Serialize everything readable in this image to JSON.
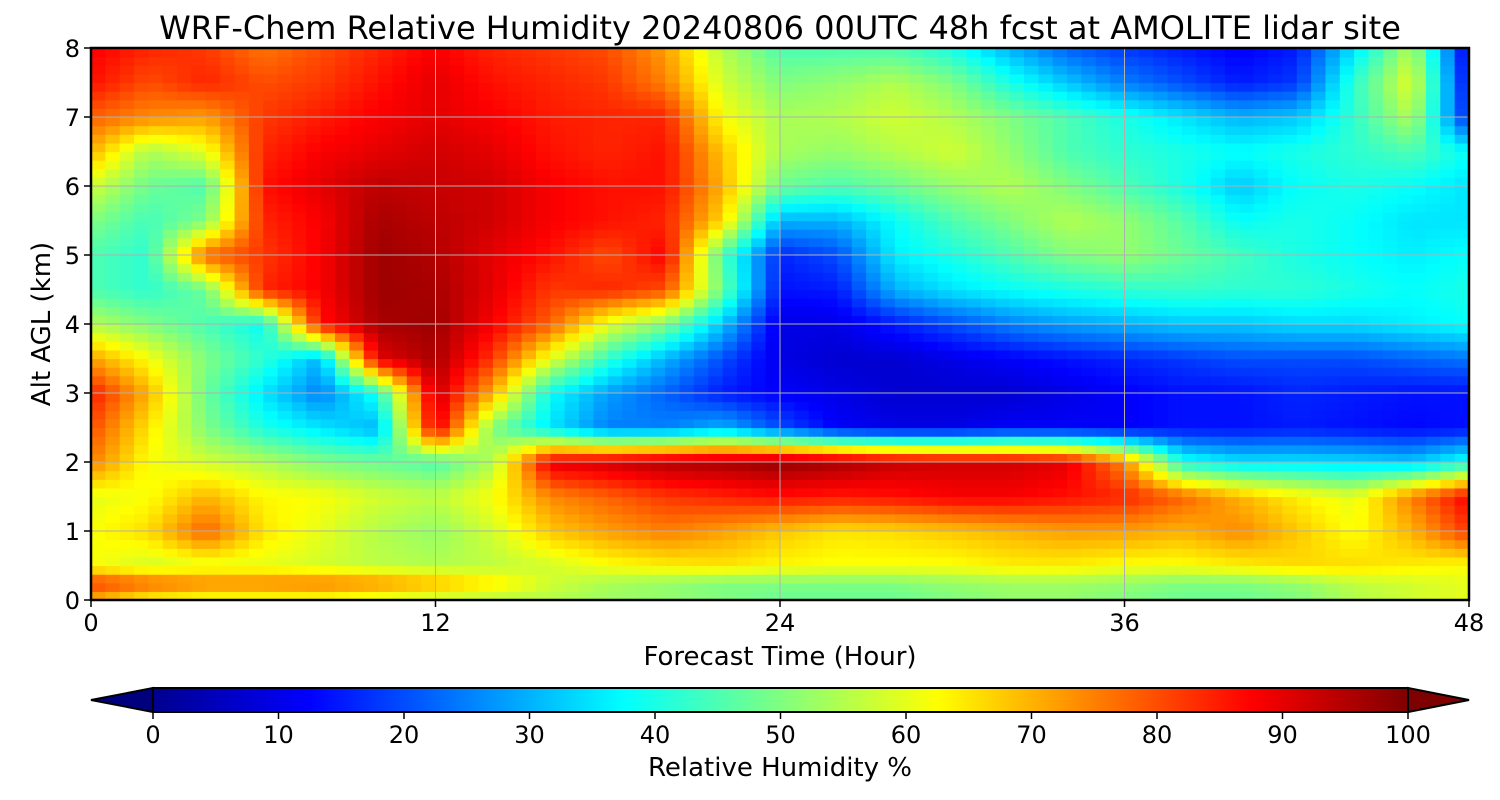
{
  "chart_data": {
    "type": "heatmap",
    "title": "WRF-Chem Relative Humidity 20240806 00UTC 48h fcst at AMOLITE lidar site",
    "xlabel": "Forecast Time (Hour)",
    "ylabel": "Alt AGL (km)",
    "xlim": [
      0,
      48
    ],
    "ylim": [
      0,
      8
    ],
    "x_ticks": [
      "0",
      "12",
      "24",
      "36",
      "48"
    ],
    "y_ticks": [
      "0",
      "1",
      "2",
      "3",
      "4",
      "5",
      "6",
      "7",
      "8"
    ],
    "grid": true,
    "colorbar": {
      "label": "Relative Humidity %",
      "ticks": [
        "0",
        "10",
        "20",
        "30",
        "40",
        "50",
        "60",
        "70",
        "80",
        "90",
        "100"
      ],
      "range": [
        0,
        100
      ],
      "colormap": "jet",
      "extend": "both"
    },
    "x": [
      0,
      2,
      4,
      6,
      8,
      10,
      12,
      14,
      16,
      18,
      20,
      22,
      24,
      26,
      28,
      30,
      32,
      34,
      36,
      38,
      40,
      42,
      44,
      46,
      48
    ],
    "y": [
      0,
      0.25,
      0.5,
      1,
      1.5,
      2,
      2.5,
      3,
      3.5,
      4,
      4.5,
      5,
      5.5,
      6,
      6.5,
      7,
      7.5,
      8
    ],
    "z": [
      [
        70,
        62,
        60,
        60,
        60,
        58,
        56,
        55,
        55,
        53,
        52,
        50,
        48,
        48,
        48,
        50,
        52,
        52,
        50,
        48,
        48,
        50,
        55,
        58,
        60
      ],
      [
        82,
        78,
        75,
        75,
        76,
        74,
        70,
        65,
        58,
        54,
        52,
        50,
        50,
        50,
        50,
        52,
        53,
        53,
        52,
        50,
        50,
        52,
        56,
        58,
        60
      ],
      [
        62,
        58,
        60,
        60,
        58,
        56,
        55,
        56,
        58,
        62,
        64,
        65,
        63,
        62,
        62,
        62,
        64,
        64,
        62,
        62,
        64,
        66,
        66,
        64,
        62
      ],
      [
        62,
        66,
        78,
        65,
        60,
        55,
        52,
        58,
        68,
        72,
        75,
        72,
        68,
        65,
        66,
        68,
        70,
        72,
        72,
        70,
        74,
        68,
        62,
        70,
        82
      ],
      [
        60,
        62,
        70,
        63,
        62,
        58,
        56,
        62,
        74,
        78,
        82,
        84,
        86,
        85,
        86,
        88,
        88,
        86,
        84,
        78,
        70,
        64,
        60,
        75,
        88
      ],
      [
        75,
        62,
        58,
        55,
        50,
        48,
        45,
        55,
        90,
        92,
        95,
        96,
        98,
        96,
        93,
        92,
        92,
        90,
        74,
        40,
        35,
        35,
        34,
        32,
        40
      ],
      [
        80,
        65,
        50,
        40,
        35,
        30,
        90,
        50,
        35,
        25,
        25,
        30,
        20,
        12,
        10,
        10,
        12,
        12,
        12,
        14,
        14,
        15,
        14,
        13,
        14
      ],
      [
        85,
        70,
        48,
        35,
        25,
        40,
        93,
        70,
        38,
        28,
        22,
        15,
        12,
        10,
        8,
        8,
        8,
        10,
        12,
        14,
        14,
        16,
        15,
        14,
        14
      ],
      [
        72,
        62,
        50,
        42,
        30,
        90,
        96,
        82,
        60,
        42,
        30,
        20,
        10,
        8,
        8,
        10,
        12,
        14,
        16,
        18,
        20,
        20,
        20,
        22,
        24
      ],
      [
        55,
        50,
        45,
        38,
        86,
        96,
        97,
        88,
        78,
        60,
        50,
        32,
        10,
        10,
        15,
        20,
        25,
        28,
        30,
        32,
        32,
        34,
        34,
        36,
        38
      ],
      [
        45,
        42,
        48,
        84,
        88,
        97,
        96,
        90,
        82,
        84,
        80,
        48,
        14,
        15,
        30,
        35,
        38,
        40,
        42,
        43,
        42,
        42,
        40,
        38,
        40
      ],
      [
        45,
        42,
        78,
        82,
        88,
        97,
        95,
        90,
        86,
        80,
        88,
        45,
        16,
        20,
        36,
        40,
        45,
        50,
        52,
        48,
        44,
        40,
        38,
        36,
        38
      ],
      [
        50,
        44,
        50,
        84,
        88,
        96,
        94,
        92,
        88,
        86,
        84,
        66,
        30,
        30,
        38,
        45,
        50,
        55,
        52,
        46,
        38,
        40,
        38,
        35,
        35
      ],
      [
        58,
        48,
        45,
        86,
        90,
        94,
        93,
        92,
        88,
        86,
        86,
        70,
        48,
        45,
        48,
        52,
        55,
        50,
        45,
        40,
        32,
        38,
        40,
        38,
        35
      ],
      [
        70,
        54,
        60,
        84,
        88,
        90,
        92,
        90,
        86,
        84,
        86,
        68,
        54,
        52,
        55,
        58,
        52,
        45,
        42,
        40,
        38,
        40,
        42,
        45,
        38
      ],
      [
        78,
        74,
        72,
        82,
        85,
        88,
        90,
        88,
        85,
        84,
        84,
        62,
        54,
        55,
        58,
        55,
        50,
        45,
        40,
        35,
        30,
        32,
        42,
        55,
        15
      ],
      [
        86,
        80,
        84,
        80,
        82,
        86,
        90,
        86,
        84,
        82,
        75,
        58,
        50,
        52,
        55,
        50,
        40,
        32,
        25,
        20,
        15,
        18,
        42,
        60,
        12
      ],
      [
        88,
        84,
        82,
        76,
        80,
        84,
        88,
        84,
        82,
        80,
        72,
        55,
        45,
        45,
        45,
        40,
        30,
        22,
        18,
        15,
        12,
        15,
        35,
        55,
        10
      ]
    ]
  }
}
